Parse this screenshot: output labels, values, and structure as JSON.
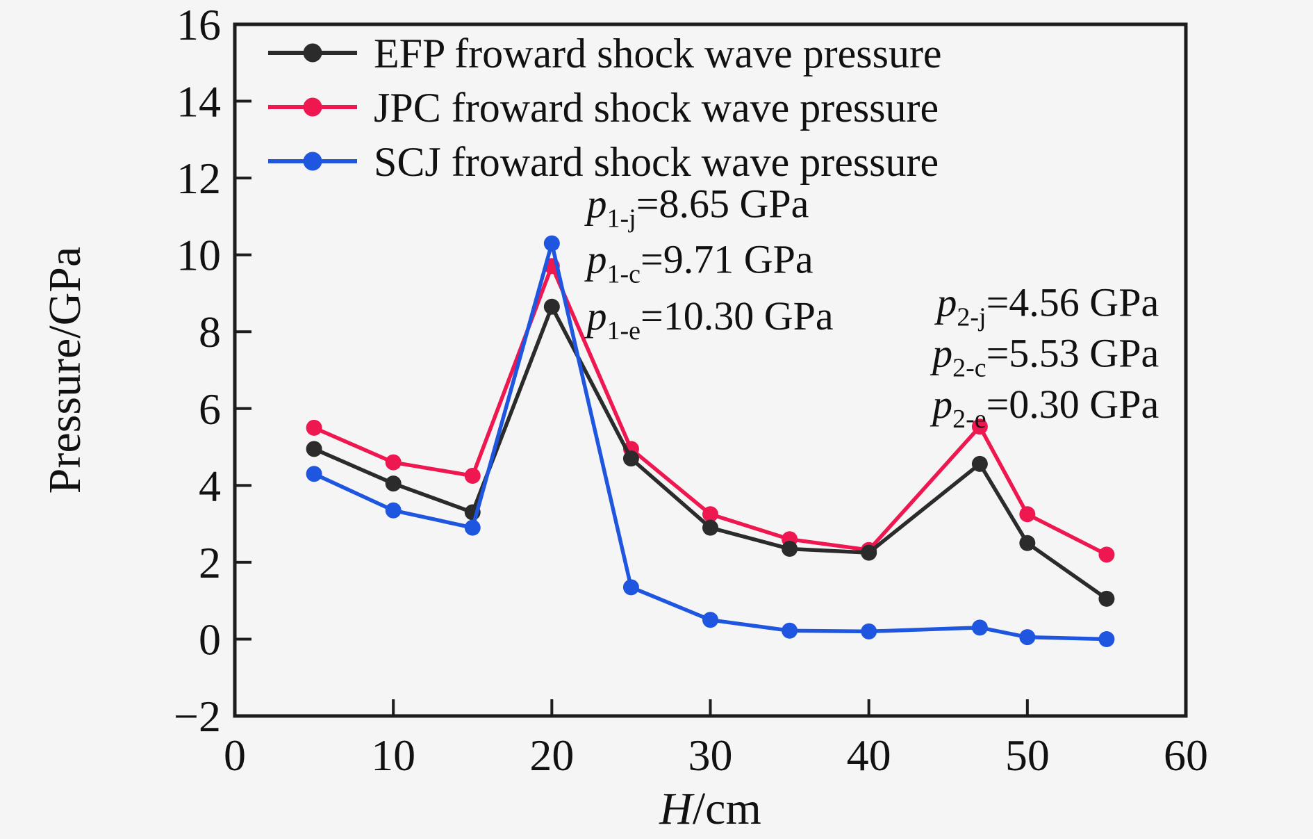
{
  "figure": {
    "background": "#f5f5f6",
    "frame_color": "#1c1c1c",
    "tick_color": "#1c1c1c",
    "text_color": "#111111"
  },
  "chart_data": {
    "type": "line",
    "title": "",
    "xlabel_italic": "H",
    "xlabel_rest": "/cm",
    "ylabel": "Pressure/GPa",
    "xlim": [
      0,
      60
    ],
    "ylim": [
      -2,
      16
    ],
    "xticks": [
      0,
      10,
      20,
      30,
      40,
      50,
      60
    ],
    "yticks": [
      -2,
      0,
      2,
      4,
      6,
      8,
      10,
      12,
      14,
      16
    ],
    "grid": false,
    "legend_position": "upper-left",
    "x": [
      5,
      10,
      15,
      20,
      25,
      30,
      35,
      40,
      47,
      50,
      55
    ],
    "series": [
      {
        "name": "JPC froward shock wave pressure",
        "color": "#ee1750",
        "marker": "circle",
        "values": [
          5.5,
          4.6,
          4.25,
          9.71,
          4.95,
          3.25,
          2.6,
          2.32,
          5.53,
          3.25,
          2.2
        ]
      },
      {
        "name": "EFP froward shock wave pressure",
        "color": "#2b2b2b",
        "marker": "circle",
        "values": [
          4.95,
          4.05,
          3.3,
          8.65,
          4.7,
          2.9,
          2.35,
          2.25,
          4.56,
          2.5,
          1.05
        ]
      },
      {
        "name": "SCJ froward shock wave pressure",
        "color": "#1e56e0",
        "marker": "circle",
        "values": [
          4.3,
          3.35,
          2.9,
          10.3,
          1.35,
          0.5,
          0.22,
          0.2,
          0.3,
          0.05,
          0.0
        ]
      }
    ],
    "legend_order": [
      "EFP froward shock wave pressure",
      "JPC froward shock wave pressure",
      "SCJ froward shock wave pressure"
    ],
    "annotations": [
      {
        "id": "peak-1",
        "align": "left",
        "x": 22.2,
        "lines": [
          {
            "var": "p",
            "sub": "1-j",
            "text": "=8.65 GPa",
            "y": 11.34
          },
          {
            "var": "p",
            "sub": "1-c",
            "text": "=9.71 GPa",
            "y": 9.89
          },
          {
            "var": "p",
            "sub": "1-e",
            "text": "=10.30 GPa",
            "y": 8.42
          }
        ]
      },
      {
        "id": "peak-2",
        "align": "right",
        "x": 58.3,
        "lines": [
          {
            "var": "p",
            "sub": "2-j",
            "text": "=4.56 GPa",
            "y": 8.77
          },
          {
            "var": "p",
            "sub": "2-c",
            "text": "=5.53 GPa",
            "y": 7.45
          },
          {
            "var": "p",
            "sub": "2-e",
            "text": "=0.30 GPa",
            "y": 6.12
          }
        ]
      }
    ]
  }
}
